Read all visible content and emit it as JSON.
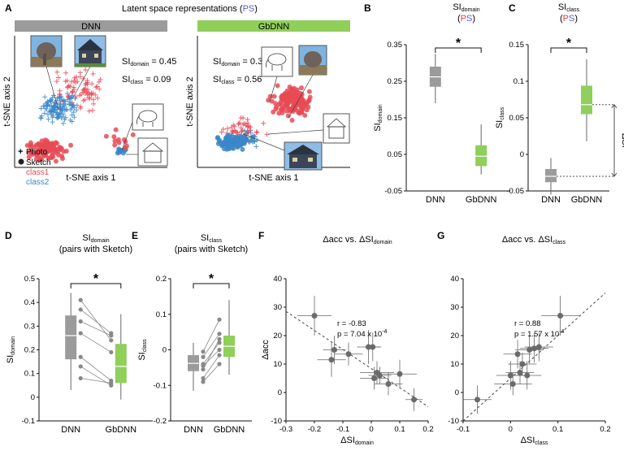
{
  "figure": {
    "title_pre": "Latent space representations (",
    "title_ps": "PS",
    "title_post": ")",
    "ps_colors": [
      "#e04040",
      "#5a5ad0"
    ]
  },
  "panel_a": {
    "label": "A",
    "dnn": {
      "header": "DNN",
      "header_color": "#9b9b9b",
      "si_domain": "0.45",
      "si_class": "0.09",
      "xlabel": "t-SNE axis 1",
      "ylabel": "t-SNE axis 2"
    },
    "gbdnn": {
      "header": "GbDNN",
      "header_color": "#8fcf5a",
      "si_domain": "0.3",
      "si_class": "0.56",
      "xlabel": "t-SNE axis 1",
      "ylabel": "t-SNE axis 2"
    },
    "legend": {
      "photo": "Photo",
      "sketch": "Sketch",
      "class1": "class1",
      "class2": "class2",
      "class1_color": "#e84a55",
      "class2_color": "#3a87c8"
    },
    "si_word": "SI",
    "domain_sub": "domain",
    "class_sub": "class",
    "eq": " = "
  },
  "chart_data": [
    {
      "id": "B",
      "type": "box",
      "title_main": "SI",
      "title_sub": "domain",
      "title_paren": "(PS)",
      "categories": [
        "DNN",
        "GbDNN"
      ],
      "ylabel_main": "SI",
      "ylabel_sub": "domain",
      "ylim": [
        -0.05,
        0.35
      ],
      "yticks": [
        "-0.05",
        "0.05",
        "0.15",
        "0.25",
        "0.35"
      ],
      "tick_values": [
        -0.05,
        0.05,
        0.15,
        0.25,
        0.35
      ],
      "boxes": [
        {
          "min": 0.19,
          "q1": 0.235,
          "median": 0.262,
          "q3": 0.29,
          "max": 0.325,
          "color": "#9b9b9b"
        },
        {
          "min": -0.005,
          "q1": 0.018,
          "median": 0.045,
          "q3": 0.075,
          "max": 0.132,
          "color": "#8fcf5a"
        }
      ],
      "sig": "*"
    },
    {
      "id": "C",
      "type": "box",
      "title_main": "SI",
      "title_sub": "class",
      "title_paren": "(PS)",
      "categories": [
        "DNN",
        "GbDNN"
      ],
      "ylabel_main": "SI",
      "ylabel_sub": "class",
      "ylim": [
        -0.05,
        0.15
      ],
      "yticks": [
        "-0.05",
        "0",
        "0.05",
        "0.1",
        "0.15"
      ],
      "tick_values": [
        -0.05,
        0,
        0.05,
        0.1,
        0.15
      ],
      "boxes": [
        {
          "min": -0.055,
          "q1": -0.038,
          "median": -0.03,
          "q3": -0.02,
          "max": -0.005,
          "color": "#9b9b9b"
        },
        {
          "min": 0.018,
          "q1": 0.055,
          "median": 0.068,
          "q3": 0.094,
          "max": 0.13,
          "color": "#8fcf5a"
        }
      ],
      "delta_label": "ΔSI",
      "sig": "*"
    },
    {
      "id": "D",
      "type": "box",
      "title_main": "SI",
      "title_sub": "domain",
      "title_paren": "(pairs with Sketch)",
      "categories": [
        "DNN",
        "GbDNN"
      ],
      "ylabel_main": "SI",
      "ylabel_sub": "domain",
      "ylim": [
        -0.1,
        0.5
      ],
      "yticks": [
        "-0.1",
        "0",
        "0.1",
        "0.2",
        "0.3",
        "0.4",
        "0.5"
      ],
      "tick_values": [
        -0.1,
        0,
        0.1,
        0.2,
        0.3,
        0.4,
        0.5
      ],
      "boxes": [
        {
          "min": 0.03,
          "q1": 0.16,
          "median": 0.26,
          "q3": 0.345,
          "max": 0.44,
          "color": "#9b9b9b"
        },
        {
          "min": -0.01,
          "q1": 0.06,
          "median": 0.13,
          "q3": 0.225,
          "max": 0.35,
          "color": "#8fcf5a"
        }
      ],
      "pairs": [
        [
          0.41,
          0.24
        ],
        [
          0.37,
          0.27
        ],
        [
          0.32,
          0.26
        ],
        [
          0.27,
          0.19
        ],
        [
          0.17,
          0.07
        ],
        [
          0.13,
          0.05
        ],
        [
          0.08,
          0.06
        ]
      ],
      "sig": "*"
    },
    {
      "id": "E",
      "type": "box",
      "title_main": "SI",
      "title_sub": "class",
      "title_paren": "(pairs with Sketch)",
      "categories": [
        "DNN",
        "GbDNN"
      ],
      "ylabel_main": "SI",
      "ylabel_sub": "class",
      "ylim": [
        -0.2,
        0.2
      ],
      "yticks": [
        "-0.2",
        "-0.1",
        "0",
        "0.1",
        "0.2"
      ],
      "tick_values": [
        -0.2,
        -0.1,
        0,
        0.1,
        0.2
      ],
      "boxes": [
        {
          "min": -0.115,
          "q1": -0.06,
          "median": -0.038,
          "q3": -0.015,
          "max": 0.02,
          "color": "#9b9b9b"
        },
        {
          "min": -0.07,
          "q1": -0.02,
          "median": 0.01,
          "q3": 0.04,
          "max": 0.14,
          "color": "#8fcf5a"
        }
      ],
      "pairs": [
        [
          -0.005,
          0.085
        ],
        [
          -0.02,
          0.045
        ],
        [
          -0.04,
          0.02
        ],
        [
          -0.045,
          0.0
        ],
        [
          -0.055,
          0.03
        ],
        [
          -0.08,
          -0.015
        ],
        [
          -0.09,
          -0.04
        ]
      ],
      "sig": "*"
    },
    {
      "id": "F",
      "type": "scatter",
      "title_pre": "Δacc vs. ΔSI",
      "title_sub": "domain",
      "xlabel_main": "ΔSI",
      "xlabel_sub": "domain",
      "ylabel": "Δacc",
      "xlim": [
        -0.3,
        0.2
      ],
      "ylim": [
        -10,
        40
      ],
      "xticks": [
        "-0.3",
        "-0.2",
        "-0.1",
        "0",
        "0.1",
        "0.2"
      ],
      "xtick_values": [
        -0.3,
        -0.2,
        -0.1,
        0,
        0.1,
        0.2
      ],
      "yticks": [
        "-10",
        "0",
        "10",
        "20",
        "30",
        "40"
      ],
      "ytick_values": [
        -10,
        0,
        10,
        20,
        30,
        40
      ],
      "stat_r": "r = -0.83",
      "stat_p": "p = 7.04 x 10",
      "stat_exp": "-4",
      "points": [
        {
          "x": -0.2,
          "y": 27,
          "ex": 0.06,
          "ey": 7
        },
        {
          "x": -0.14,
          "y": 11.5,
          "ex": 0.05,
          "ey": 6
        },
        {
          "x": -0.13,
          "y": 15,
          "ex": 0.04,
          "ey": 5
        },
        {
          "x": -0.08,
          "y": 13.5,
          "ex": 0.05,
          "ey": 4
        },
        {
          "x": -0.01,
          "y": 16,
          "ex": 0.04,
          "ey": 6
        },
        {
          "x": 0.005,
          "y": 16,
          "ex": 0.03,
          "ey": 5
        },
        {
          "x": 0.01,
          "y": 5,
          "ex": 0.05,
          "ey": 4
        },
        {
          "x": 0.02,
          "y": 7,
          "ex": 0.06,
          "ey": 4
        },
        {
          "x": 0.03,
          "y": 6,
          "ex": 0.04,
          "ey": 3
        },
        {
          "x": 0.06,
          "y": 3,
          "ex": 0.05,
          "ey": 4
        },
        {
          "x": 0.1,
          "y": 6.5,
          "ex": 0.06,
          "ey": 5
        },
        {
          "x": 0.15,
          "y": -2.5,
          "ex": 0.03,
          "ey": 4
        }
      ],
      "fit": [
        [
          -0.3,
          28.5
        ],
        [
          0.2,
          -5
        ]
      ]
    },
    {
      "id": "G",
      "type": "scatter",
      "title_pre": "Δacc vs. ΔSI",
      "title_sub": "class",
      "xlabel_main": "ΔSI",
      "xlabel_sub": "class",
      "ylabel": "",
      "xlim": [
        -0.1,
        0.2
      ],
      "ylim": [
        -10,
        40
      ],
      "xticks": [
        "-0.1",
        "0",
        "0.1",
        "0.2"
      ],
      "xtick_values": [
        -0.1,
        0,
        0.1,
        0.2
      ],
      "yticks": [
        "-10",
        "0",
        "10",
        "20",
        "30",
        "40"
      ],
      "ytick_values": [
        -10,
        0,
        10,
        20,
        30,
        40
      ],
      "stat_r": "r = 0.88",
      "stat_p": "p = 1.57 x 10",
      "stat_exp": "-4",
      "points": [
        {
          "x": -0.07,
          "y": -2.5,
          "ex": 0.03,
          "ey": 5
        },
        {
          "x": 0.0,
          "y": 6,
          "ex": 0.03,
          "ey": 5
        },
        {
          "x": 0.005,
          "y": 3,
          "ex": 0.04,
          "ey": 4
        },
        {
          "x": 0.015,
          "y": 13.5,
          "ex": 0.03,
          "ey": 5
        },
        {
          "x": 0.02,
          "y": 7,
          "ex": 0.03,
          "ey": 4
        },
        {
          "x": 0.025,
          "y": 10,
          "ex": 0.03,
          "ey": 4
        },
        {
          "x": 0.035,
          "y": 6,
          "ex": 0.03,
          "ey": 5
        },
        {
          "x": 0.04,
          "y": 15,
          "ex": 0.03,
          "ey": 5
        },
        {
          "x": 0.05,
          "y": 15.5,
          "ex": 0.03,
          "ey": 5
        },
        {
          "x": 0.06,
          "y": 16,
          "ex": 0.03,
          "ey": 5
        },
        {
          "x": 0.105,
          "y": 27,
          "ex": 0.04,
          "ey": 7
        }
      ],
      "fit": [
        [
          -0.1,
          -10
        ],
        [
          0.2,
          35
        ]
      ]
    }
  ]
}
